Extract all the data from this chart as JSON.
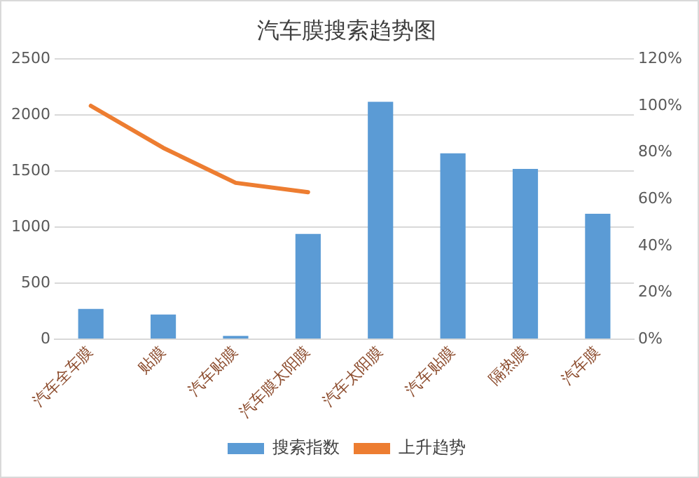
{
  "chart_data": {
    "type": "bar",
    "title": "汽车膜搜索趋势图",
    "categories": [
      "汽车全车膜",
      "贴膜",
      "汽车贴膜",
      "汽车膜太阳膜",
      "汽车太阳膜",
      "汽车贴膜",
      "隔热膜",
      "汽车膜"
    ],
    "series": [
      {
        "name": "搜索指数",
        "color": "#5b9bd5",
        "values": [
          270,
          220,
          30,
          940,
          2120,
          1660,
          1520,
          1120
        ]
      },
      {
        "name": "上升趋势",
        "type": "line",
        "axis": "y2",
        "color": "#ed7d31",
        "marker": "none",
        "values": [
          100,
          82,
          67,
          63,
          null,
          null,
          null,
          null
        ]
      }
    ],
    "ylim": [
      0,
      2500
    ],
    "yticks": [
      0,
      500,
      1000,
      1500,
      2000,
      2500
    ],
    "y2lim": [
      0,
      120
    ],
    "y2ticks": [
      {
        "value": 0,
        "label": "0%"
      },
      {
        "value": 20,
        "label": "20%"
      },
      {
        "value": 40,
        "label": "40%"
      },
      {
        "value": 60,
        "label": "60%"
      },
      {
        "value": 80,
        "label": "80%"
      },
      {
        "value": 100,
        "label": "100%"
      },
      {
        "value": 120,
        "label": "120%"
      }
    ],
    "grid": "y",
    "legend": "bottom"
  }
}
